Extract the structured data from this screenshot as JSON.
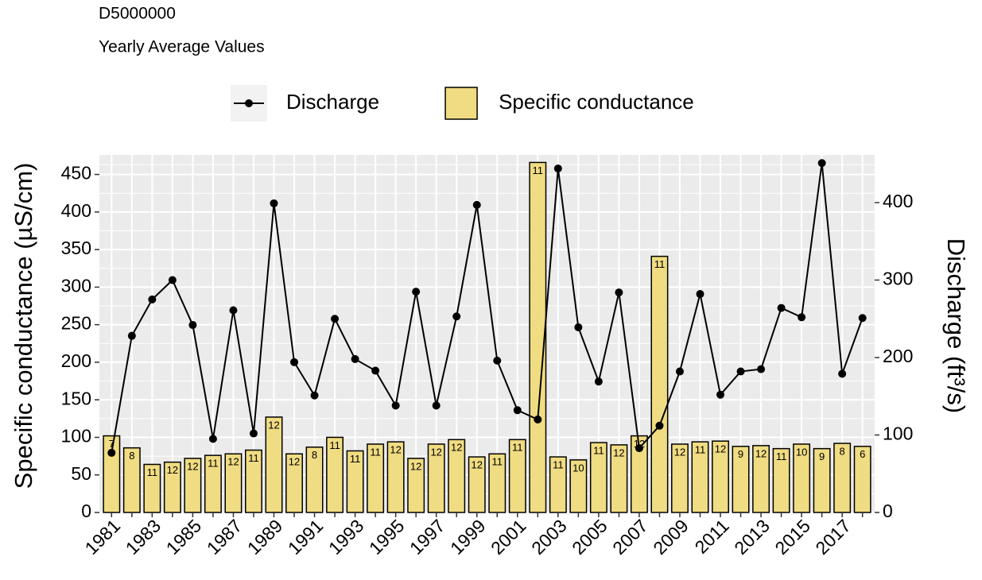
{
  "chart_data": {
    "type": "bar_line",
    "title": "D5000000",
    "subtitle": "Yearly Average Values",
    "ylabel": "Specific conductance (µS/cm)",
    "y2label": "Discharge (ft³/s)",
    "categories": [
      "1981",
      null,
      "1983",
      null,
      "1985",
      null,
      "1987",
      null,
      "1989",
      null,
      "1991",
      null,
      "1993",
      null,
      "1995",
      null,
      "1997",
      null,
      "1999",
      null,
      "2001",
      null,
      "2003",
      null,
      "2005",
      null,
      "2007",
      null,
      "2009",
      null,
      "2011",
      null,
      "2013",
      null,
      "2015",
      null,
      "2017",
      null
    ],
    "series": [
      {
        "name": "Specific conductance",
        "type": "bar",
        "color": "#F0DC82",
        "values": [
          102,
          86,
          64,
          67,
          72,
          76,
          78,
          83,
          127,
          78,
          87,
          100,
          82,
          91,
          94,
          72,
          91,
          97,
          74,
          78,
          97,
          466,
          74,
          70,
          93,
          90,
          102,
          341,
          91,
          94,
          95,
          88,
          89,
          85,
          91,
          85,
          92,
          88
        ],
        "counts": [
          "7",
          "8",
          "11",
          "12",
          "12",
          "11",
          "12",
          "11",
          "12",
          "12",
          "8",
          "11",
          "11",
          "11",
          "12",
          "12",
          "12",
          "12",
          "12",
          "11",
          "11",
          "11",
          "11",
          "10",
          "11",
          "12",
          "12",
          "11",
          "12",
          "11",
          "12",
          "9",
          "12",
          "11",
          "10",
          "9",
          "8",
          "6"
        ]
      },
      {
        "name": "Discharge",
        "type": "line",
        "color": "#000000",
        "axis": "y2",
        "values": [
          77,
          228,
          275,
          300,
          242,
          95,
          261,
          102,
          399,
          194,
          151,
          250,
          198,
          183,
          138,
          285,
          138,
          253,
          397,
          196,
          132,
          120,
          444,
          239,
          169,
          284,
          83,
          112,
          182,
          282,
          152,
          182,
          185,
          264,
          252,
          451,
          179,
          251
        ]
      }
    ],
    "ylim": [
      0,
      476
    ],
    "yticks": [
      0,
      50,
      100,
      150,
      200,
      250,
      300,
      350,
      400,
      450
    ],
    "y2lim": [
      0,
      461.5
    ],
    "y2ticks": [
      0,
      100,
      200,
      300,
      400
    ],
    "grid": true,
    "legend": "top"
  }
}
